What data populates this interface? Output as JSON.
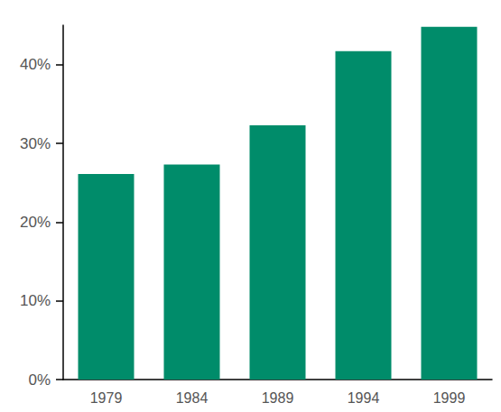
{
  "chart_data": {
    "type": "bar",
    "categories": [
      "1979",
      "1984",
      "1989",
      "1994",
      "1999"
    ],
    "values": [
      26.1,
      27.3,
      32.3,
      41.7,
      44.8
    ],
    "color": "#008c6a",
    "ylim": [
      0,
      45
    ],
    "yticks": [
      {
        "value": 0,
        "label": "0%"
      },
      {
        "value": 10,
        "label": "10%"
      },
      {
        "value": 20,
        "label": "20%"
      },
      {
        "value": 30,
        "label": "30%"
      },
      {
        "value": 40,
        "label": "40%"
      }
    ],
    "grid": false
  }
}
